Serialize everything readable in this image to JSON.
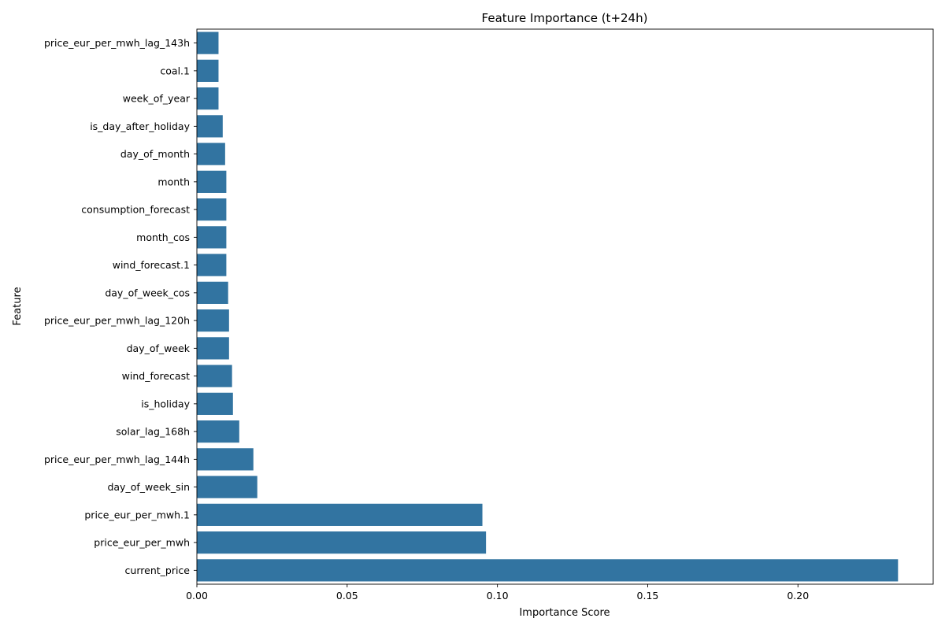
{
  "chart_data": {
    "type": "bar",
    "orientation": "horizontal",
    "title": "Feature Importance (t+24h)",
    "xlabel": "Importance Score",
    "ylabel": "Feature",
    "xlim": [
      0,
      0.245
    ],
    "xticks": [
      0.0,
      0.05,
      0.1,
      0.15,
      0.2
    ],
    "xtick_labels": [
      "0.00",
      "0.05",
      "0.10",
      "0.15",
      "0.20"
    ],
    "grid": false,
    "bar_color": "#3274a1",
    "categories": [
      "price_eur_per_mwh_lag_143h",
      "coal.1",
      "week_of_year",
      "is_day_after_holiday",
      "day_of_month",
      "month",
      "consumption_forecast",
      "month_cos",
      "wind_forecast.1",
      "day_of_week_cos",
      "price_eur_per_mwh_lag_120h",
      "day_of_week",
      "wind_forecast",
      "is_holiday",
      "solar_lag_168h",
      "price_eur_per_mwh_lag_144h",
      "day_of_week_sin",
      "price_eur_per_mwh.1",
      "price_eur_per_mwh",
      "current_price"
    ],
    "values": [
      0.0072,
      0.0072,
      0.0072,
      0.0086,
      0.0094,
      0.0098,
      0.0098,
      0.0098,
      0.0098,
      0.0104,
      0.0107,
      0.0107,
      0.0117,
      0.012,
      0.0141,
      0.0188,
      0.0201,
      0.095,
      0.0962,
      0.2333
    ]
  }
}
